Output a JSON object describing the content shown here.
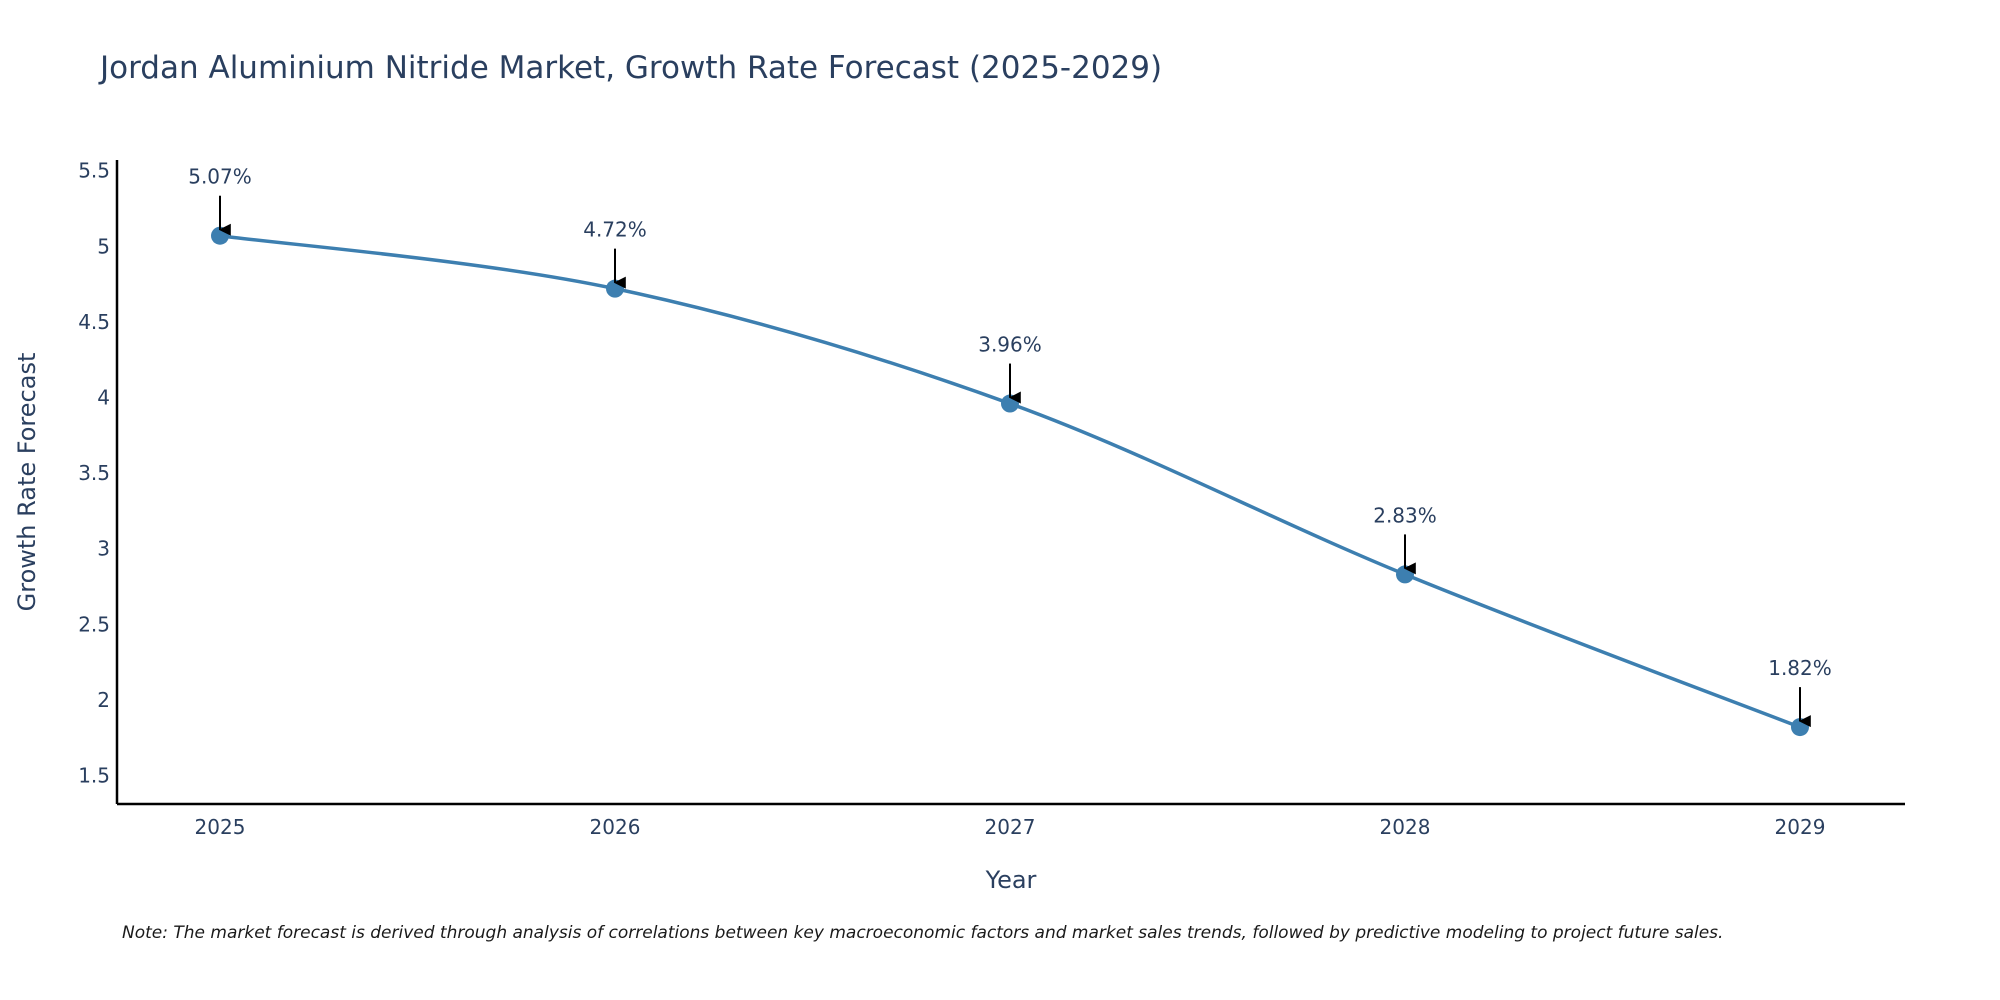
{
  "chart_data": {
    "type": "line",
    "title": "Jordan Aluminium Nitride Market, Growth Rate Forecast (2025-2029)",
    "xlabel": "Year",
    "ylabel": "Growth Rate Forecast",
    "x": [
      "2025",
      "2026",
      "2027",
      "2028",
      "2029"
    ],
    "series": [
      {
        "name": "Growth Rate Forecast",
        "values": [
          5.07,
          4.72,
          3.96,
          2.83,
          1.82
        ],
        "labels": [
          "5.07%",
          "4.72%",
          "3.96%",
          "2.83%",
          "1.82%"
        ]
      }
    ],
    "ylim": [
      1.3,
      5.55
    ],
    "yticks": [
      1.5,
      2,
      2.5,
      3,
      3.5,
      4,
      4.5,
      5,
      5.5
    ],
    "ytick_labels": [
      "1.5",
      "2",
      "2.5",
      "3",
      "3.5",
      "4",
      "4.5",
      "5",
      "5.5"
    ],
    "grid": false,
    "line_color": "#3d7fb0",
    "marker_color": "#3d7fb0",
    "arrow_color": "#000000",
    "note": "Note: The market forecast is derived through analysis of correlations between key macroeconomic factors and market sales trends, followed by predictive modeling to project future sales."
  }
}
